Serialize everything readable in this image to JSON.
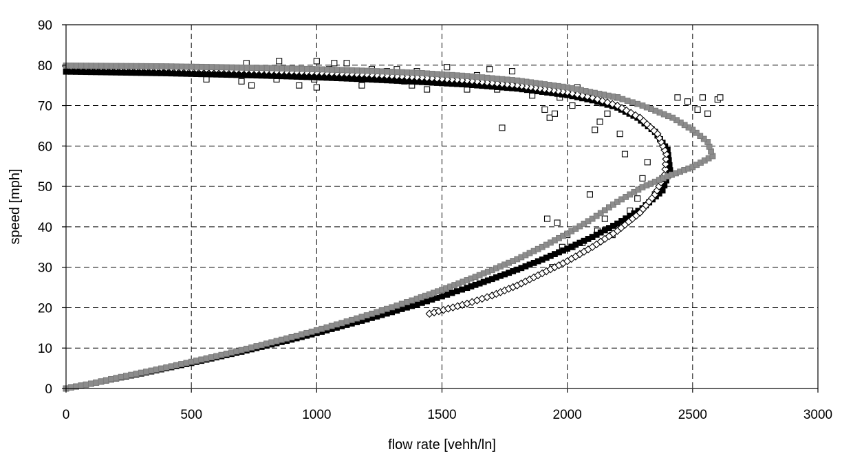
{
  "chart_data": {
    "type": "scatter",
    "title": "",
    "xlabel": "flow rate [vehh/ln]",
    "ylabel": "speed [mph]",
    "xlim": [
      0,
      3000
    ],
    "ylim": [
      0,
      90
    ],
    "xticks": [
      0,
      500,
      1000,
      1500,
      2000,
      2500,
      3000
    ],
    "yticks": [
      0,
      10,
      20,
      30,
      40,
      50,
      60,
      70,
      80,
      90
    ],
    "grid": true,
    "legend": "none",
    "series": [
      {
        "marker": "open-square",
        "color": "#000000",
        "points": [
          [
            400,
            79
          ],
          [
            460,
            79.5
          ],
          [
            560,
            76.5
          ],
          [
            700,
            76
          ],
          [
            720,
            80.5
          ],
          [
            740,
            75
          ],
          [
            840,
            76.5
          ],
          [
            850,
            81
          ],
          [
            900,
            78.5
          ],
          [
            930,
            75
          ],
          [
            970,
            79
          ],
          [
            990,
            76.5
          ],
          [
            1000,
            74.5
          ],
          [
            1000,
            81
          ],
          [
            1050,
            79
          ],
          [
            1070,
            80.5
          ],
          [
            1120,
            80.5
          ],
          [
            1160,
            77
          ],
          [
            1180,
            75
          ],
          [
            1220,
            79
          ],
          [
            1250,
            77.5
          ],
          [
            1280,
            78.5
          ],
          [
            1320,
            79
          ],
          [
            1350,
            76
          ],
          [
            1380,
            75
          ],
          [
            1400,
            78.5
          ],
          [
            1440,
            74
          ],
          [
            1480,
            76.5
          ],
          [
            1520,
            79.5
          ],
          [
            1560,
            75.5
          ],
          [
            1600,
            74
          ],
          [
            1640,
            77.5
          ],
          [
            1690,
            79
          ],
          [
            1720,
            74
          ],
          [
            1740,
            64.5
          ],
          [
            1780,
            78.5
          ],
          [
            1820,
            75
          ],
          [
            1860,
            72.5
          ],
          [
            1900,
            75
          ],
          [
            1910,
            69
          ],
          [
            1930,
            67
          ],
          [
            1950,
            68
          ],
          [
            1970,
            72
          ],
          [
            2000,
            73.5
          ],
          [
            2020,
            70
          ],
          [
            2040,
            74.5
          ],
          [
            2080,
            73
          ],
          [
            2090,
            48
          ],
          [
            2110,
            64
          ],
          [
            2130,
            66
          ],
          [
            2160,
            68
          ],
          [
            2200,
            72
          ],
          [
            2210,
            63
          ],
          [
            2230,
            58
          ],
          [
            2250,
            44
          ],
          [
            2280,
            47
          ],
          [
            2300,
            52
          ],
          [
            2320,
            56
          ],
          [
            2350,
            48
          ],
          [
            2380,
            52
          ],
          [
            2440,
            72
          ],
          [
            2480,
            71
          ],
          [
            2520,
            69
          ],
          [
            2540,
            72
          ],
          [
            2560,
            68
          ],
          [
            2600,
            71.5
          ],
          [
            2610,
            72
          ],
          [
            1920,
            42
          ],
          [
            1960,
            41
          ],
          [
            1980,
            35
          ],
          [
            2000,
            38
          ],
          [
            2020,
            35
          ],
          [
            2060,
            36
          ],
          [
            2120,
            39
          ],
          [
            2180,
            38
          ],
          [
            2150,
            42
          ],
          [
            1940,
            30
          ]
        ]
      },
      {
        "marker": "filled-square",
        "color": "#000000",
        "curve": "black-solid"
      },
      {
        "marker": "open-diamond",
        "color": "#000000",
        "curve": "black-solid-2"
      },
      {
        "marker": "filled-square",
        "color": "#8c8c8c",
        "curve": "gray-dashed"
      }
    ],
    "curves": [
      {
        "name": "black-solid",
        "style": "solid",
        "color": "#000000",
        "points": [
          [
            0,
            0
          ],
          [
            100,
            1.2
          ],
          [
            200,
            2.5
          ],
          [
            300,
            3.7
          ],
          [
            400,
            5
          ],
          [
            500,
            6.3
          ],
          [
            600,
            7.7
          ],
          [
            700,
            9.1
          ],
          [
            800,
            10.6
          ],
          [
            900,
            12.1
          ],
          [
            1000,
            13.7
          ],
          [
            1100,
            15.4
          ],
          [
            1200,
            17.1
          ],
          [
            1300,
            18.9
          ],
          [
            1400,
            20.8
          ],
          [
            1500,
            22.8
          ],
          [
            1600,
            24.9
          ],
          [
            1700,
            27.1
          ],
          [
            1800,
            29.4
          ],
          [
            1900,
            31.9
          ],
          [
            2000,
            34.6
          ],
          [
            2100,
            37.5
          ],
          [
            2200,
            40.8
          ],
          [
            2300,
            44.6
          ],
          [
            2380,
            49
          ],
          [
            2410,
            54
          ],
          [
            2400,
            59
          ],
          [
            2350,
            63.5
          ],
          [
            2280,
            67
          ],
          [
            2200,
            69.5
          ],
          [
            2100,
            71.3
          ],
          [
            2000,
            72.6
          ],
          [
            1800,
            74.2
          ],
          [
            1600,
            75.2
          ],
          [
            1400,
            75.9
          ],
          [
            1200,
            76.5
          ],
          [
            1000,
            77
          ],
          [
            800,
            77.4
          ],
          [
            600,
            77.7
          ],
          [
            400,
            78
          ],
          [
            200,
            78.2
          ],
          [
            0,
            78.4
          ]
        ]
      },
      {
        "name": "black-solid-2",
        "style": "solid",
        "color": "#000000",
        "points": [
          [
            1450,
            18.5
          ],
          [
            1600,
            21
          ],
          [
            1700,
            23
          ],
          [
            1800,
            25.5
          ],
          [
            1900,
            28.5
          ],
          [
            2000,
            31.5
          ],
          [
            2100,
            35
          ],
          [
            2200,
            39
          ],
          [
            2290,
            43.5
          ],
          [
            2350,
            48
          ],
          [
            2390,
            53
          ],
          [
            2395,
            58
          ],
          [
            2360,
            63
          ],
          [
            2290,
            67
          ],
          [
            2200,
            70
          ],
          [
            2100,
            72
          ],
          [
            2000,
            73.3
          ],
          [
            1800,
            75
          ],
          [
            1600,
            76.2
          ],
          [
            1400,
            77
          ],
          [
            1200,
            77.7
          ],
          [
            1000,
            78.2
          ],
          [
            800,
            78.6
          ],
          [
            600,
            79
          ],
          [
            400,
            79.3
          ],
          [
            200,
            79.5
          ],
          [
            0,
            79.7
          ]
        ]
      },
      {
        "name": "gray-dashed",
        "style": "dashed",
        "color": "#707070",
        "points": [
          [
            0,
            0
          ],
          [
            100,
            1.2
          ],
          [
            200,
            2.6
          ],
          [
            300,
            3.9
          ],
          [
            400,
            5.2
          ],
          [
            500,
            6.6
          ],
          [
            600,
            8
          ],
          [
            700,
            9.5
          ],
          [
            800,
            11.1
          ],
          [
            900,
            12.7
          ],
          [
            1000,
            14.4
          ],
          [
            1100,
            16.2
          ],
          [
            1200,
            18.1
          ],
          [
            1300,
            20.1
          ],
          [
            1400,
            22.2
          ],
          [
            1500,
            24.4
          ],
          [
            1600,
            26.8
          ],
          [
            1700,
            29.3
          ],
          [
            1800,
            32
          ],
          [
            1900,
            35
          ],
          [
            2000,
            38.3
          ],
          [
            2100,
            42
          ],
          [
            2200,
            46.2
          ],
          [
            2300,
            49.8
          ],
          [
            2400,
            52.5
          ],
          [
            2500,
            54.8
          ],
          [
            2580,
            57.5
          ],
          [
            2560,
            61
          ],
          [
            2500,
            64
          ],
          [
            2420,
            67
          ],
          [
            2300,
            70
          ],
          [
            2200,
            72
          ],
          [
            2000,
            74.5
          ],
          [
            1800,
            76.2
          ],
          [
            1600,
            77.3
          ],
          [
            1400,
            78.1
          ],
          [
            1200,
            78.6
          ],
          [
            1000,
            79
          ],
          [
            800,
            79.3
          ],
          [
            600,
            79.5
          ],
          [
            400,
            79.7
          ],
          [
            200,
            79.8
          ],
          [
            0,
            79.9
          ]
        ]
      }
    ]
  }
}
